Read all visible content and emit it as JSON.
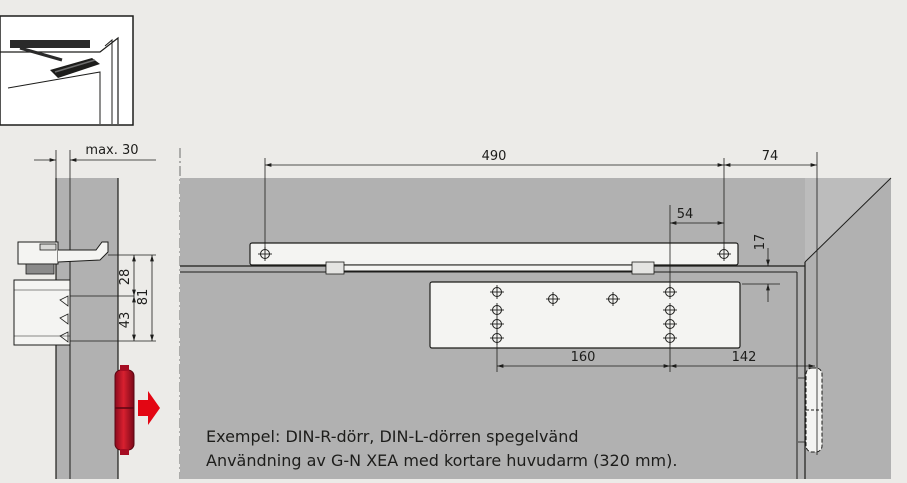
{
  "dimensions": {
    "max_offset": "max. 30",
    "arm_rail_length": "490",
    "rail_to_hinge": "74",
    "hole_offset": "54",
    "rail_gap": "17",
    "upper_height": "28",
    "lower_height": "43",
    "total_height": "81",
    "hole_spacing": "160",
    "body_to_hinge": "142"
  },
  "caption": {
    "line1": "Exempel: DIN-R-dörr, DIN-L-dörren spegelvänd",
    "line2": "Användning av G-N XEA med kortare huvudarm (320 mm)."
  },
  "colors": {
    "background": "#ecebe8",
    "door_fill": "#b1b1b1",
    "part_fill": "#f4f4f2",
    "line": "#1d1d1b",
    "hinge_red": "#c8102e",
    "arrow_red": "#e30613"
  },
  "icons": {
    "thumbnail": "door-closer-illustration",
    "direction": "arrow-right-icon",
    "mounting_hole": "crosshair-hole-icon"
  }
}
